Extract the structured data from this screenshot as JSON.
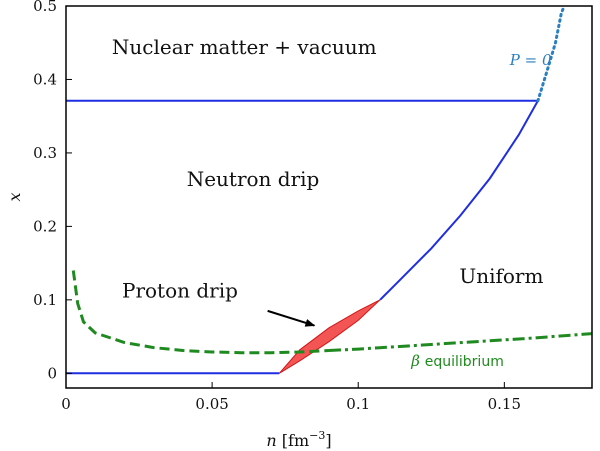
{
  "chart_data": {
    "type": "line",
    "xlabel": {
      "var": "n",
      "unit_open": "[fm",
      "unit_exp": "−3",
      "unit_close": "]"
    },
    "ylabel": "x",
    "xlim": [
      0,
      0.18
    ],
    "ylim": [
      -0.02,
      0.5
    ],
    "xticks": [
      {
        "value": 0,
        "label": "0"
      },
      {
        "value": 0.05,
        "label": "0.05"
      },
      {
        "value": 0.1,
        "label": "0.1"
      },
      {
        "value": 0.15,
        "label": "0.15"
      }
    ],
    "yticks": [
      {
        "value": 0,
        "label": "0"
      },
      {
        "value": 0.1,
        "label": "0.1"
      },
      {
        "value": 0.2,
        "label": "0.2"
      },
      {
        "value": 0.3,
        "label": "0.3"
      },
      {
        "value": 0.4,
        "label": "0.4"
      },
      {
        "value": 0.5,
        "label": "0.5"
      }
    ],
    "regions": [
      {
        "label": "Nuclear matter + vacuum",
        "x": 0.061,
        "y": 0.435
      },
      {
        "label": "Neutron drip",
        "x": 0.064,
        "y": 0.255
      },
      {
        "label": "Proton drip",
        "x": 0.039,
        "y": 0.103
      },
      {
        "label": "Uniform",
        "x": 0.149,
        "y": 0.123
      }
    ],
    "series": [
      {
        "style": "solid",
        "color": "#1f2ee0",
        "points": [
          [
            0,
            0
          ],
          [
            0.073,
            0
          ]
        ]
      },
      {
        "style": "solid",
        "color": "#1f2ee0",
        "points": [
          [
            0,
            0.371
          ],
          [
            0.1615,
            0.371
          ]
        ]
      },
      {
        "style": "solid",
        "color": "#1f2ee0",
        "points": [
          [
            0.1075,
            0.1
          ],
          [
            0.115,
            0.13
          ],
          [
            0.125,
            0.17
          ],
          [
            0.135,
            0.215
          ],
          [
            0.145,
            0.265
          ],
          [
            0.155,
            0.325
          ],
          [
            0.1615,
            0.371
          ]
        ]
      },
      {
        "style": "dotted",
        "color": "#2a7fc0",
        "points": [
          [
            0.1615,
            0.371
          ],
          [
            0.1645,
            0.41
          ],
          [
            0.1675,
            0.45
          ],
          [
            0.1695,
            0.49
          ],
          [
            0.1705,
            0.5
          ]
        ]
      },
      {
        "style": "dashed",
        "color": "#1f8a1f",
        "points": [
          [
            0.0025,
            0.14
          ],
          [
            0.004,
            0.095
          ],
          [
            0.006,
            0.07
          ],
          [
            0.01,
            0.055
          ],
          [
            0.02,
            0.042
          ],
          [
            0.03,
            0.035
          ],
          [
            0.04,
            0.031
          ],
          [
            0.05,
            0.029
          ],
          [
            0.06,
            0.028
          ],
          [
            0.07,
            0.028
          ],
          [
            0.08,
            0.029
          ],
          [
            0.09,
            0.031
          ]
        ]
      },
      {
        "style": "dashdot",
        "color": "#1f8a1f",
        "points": [
          [
            0.09,
            0.031
          ],
          [
            0.1,
            0.033
          ],
          [
            0.12,
            0.038
          ],
          [
            0.14,
            0.043
          ],
          [
            0.16,
            0.048
          ],
          [
            0.18,
            0.054
          ]
        ]
      }
    ],
    "proton_drip_region": {
      "color": "#f03030",
      "upper": [
        [
          0.073,
          0
        ],
        [
          0.08,
          0.032
        ],
        [
          0.09,
          0.062
        ],
        [
          0.1,
          0.085
        ],
        [
          0.1075,
          0.1
        ]
      ],
      "lower": [
        [
          0.1075,
          0.1
        ],
        [
          0.1,
          0.072
        ],
        [
          0.09,
          0.043
        ],
        [
          0.08,
          0.017
        ],
        [
          0.073,
          0
        ]
      ]
    },
    "annotations": [
      {
        "text": "P = 0",
        "x": 0.159,
        "y": 0.42,
        "color": "#2a7fc0"
      },
      {
        "beta": "β",
        "text": "equilibrium",
        "x": 0.134,
        "y": 0.01,
        "color": "#1f8a1f"
      }
    ],
    "arrow": {
      "from": [
        0.069,
        0.085
      ],
      "to": [
        0.085,
        0.065
      ]
    }
  }
}
